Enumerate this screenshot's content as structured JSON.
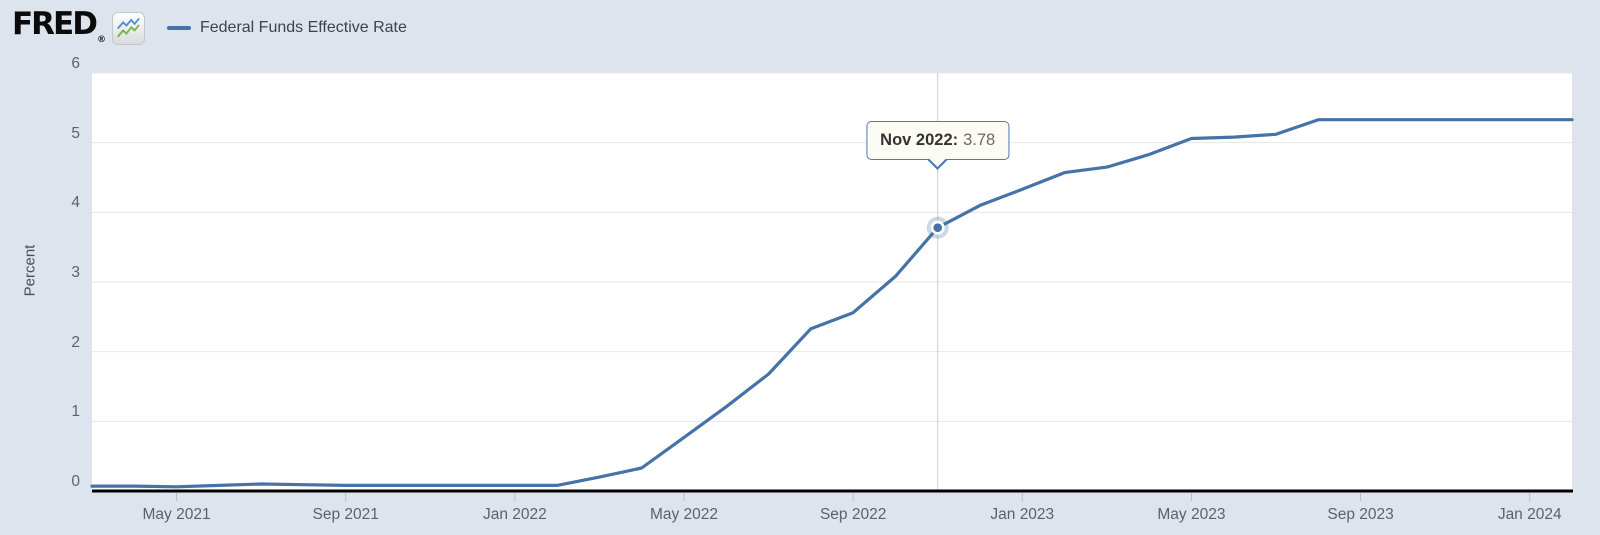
{
  "header": {
    "logo_text": "FRED",
    "registered_mark": "®",
    "legend": {
      "series_label": "Federal Funds Effective Rate"
    }
  },
  "tooltip": {
    "month": "Nov 2022",
    "label": "Nov 2022:",
    "value": "3.78"
  },
  "colors": {
    "background": "#dde4ed",
    "plot_background": "#ffffff",
    "series_line": "#4572a7",
    "gridline": "#e7e7e7",
    "crosshair": "#cccccc",
    "axis_line": "#000000",
    "tick_mark": "#bdbdbd",
    "marker_halo": "rgba(69,114,167,0.28)",
    "logo_icon_blue": "#5b8fc9",
    "logo_icon_green": "#7ab648"
  },
  "chart_data": {
    "type": "line",
    "title": "",
    "xlabel": "",
    "ylabel": "Percent",
    "legend_position": "top-left",
    "grid": "horizontal",
    "ylim": [
      0,
      6
    ],
    "yticks": [
      0,
      1,
      2,
      3,
      4,
      5,
      6
    ],
    "xticks": [
      "May 2021",
      "Sep 2021",
      "Jan 2022",
      "May 2022",
      "Sep 2022",
      "Jan 2023",
      "May 2023",
      "Sep 2023",
      "Jan 2024"
    ],
    "series_name": "Federal Funds Effective Rate",
    "x": [
      "Mar 2021",
      "Apr 2021",
      "May 2021",
      "Jun 2021",
      "Jul 2021",
      "Aug 2021",
      "Sep 2021",
      "Oct 2021",
      "Nov 2021",
      "Dec 2021",
      "Jan 2022",
      "Feb 2022",
      "Mar 2022",
      "Apr 2022",
      "May 2022",
      "Jun 2022",
      "Jul 2022",
      "Aug 2022",
      "Sep 2022",
      "Oct 2022",
      "Nov 2022",
      "Dec 2022",
      "Jan 2023",
      "Feb 2023",
      "Mar 2023",
      "Apr 2023",
      "May 2023",
      "Jun 2023",
      "Jul 2023",
      "Aug 2023",
      "Sep 2023",
      "Oct 2023",
      "Nov 2023",
      "Dec 2023",
      "Jan 2024",
      "Feb 2024"
    ],
    "values": [
      0.07,
      0.07,
      0.06,
      0.08,
      0.1,
      0.09,
      0.08,
      0.08,
      0.08,
      0.08,
      0.08,
      0.08,
      0.2,
      0.33,
      0.77,
      1.21,
      1.68,
      2.33,
      2.56,
      3.08,
      3.78,
      4.1,
      4.33,
      4.57,
      4.65,
      4.83,
      5.06,
      5.08,
      5.12,
      5.33,
      5.33,
      5.33,
      5.33,
      5.33,
      5.33,
      5.33
    ],
    "highlighted_point": {
      "x": "Nov 2022",
      "y": 3.78
    }
  }
}
